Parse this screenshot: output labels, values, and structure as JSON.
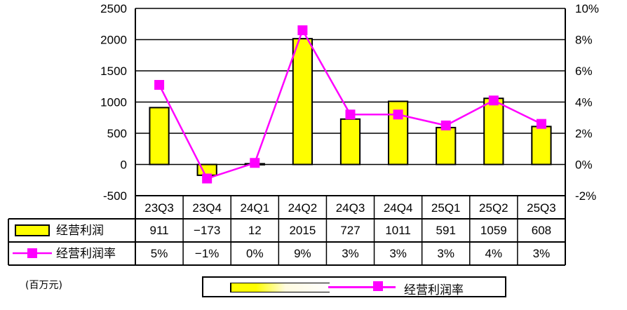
{
  "chart_data": {
    "type": "bar",
    "categories": [
      "23Q3",
      "23Q4",
      "24Q1",
      "24Q2",
      "24Q3",
      "24Q4",
      "25Q1",
      "25Q2",
      "25Q3"
    ],
    "series": [
      {
        "name": "经营利润",
        "type": "bar",
        "axis": "left",
        "color": "#ffff00",
        "values": [
          911,
          -173,
          12,
          2015,
          727,
          1011,
          591,
          1059,
          608
        ]
      },
      {
        "name": "经营利润率",
        "type": "line",
        "axis": "right",
        "color": "#ff00ff",
        "values": [
          5.1,
          -0.9,
          0.1,
          8.6,
          3.2,
          3.2,
          2.5,
          4.1,
          2.6
        ]
      }
    ],
    "table_rows": [
      {
        "label": "经营利润",
        "values": [
          "911",
          "−173",
          "12",
          "2015",
          "727",
          "1011",
          "591",
          "1059",
          "608"
        ]
      },
      {
        "label": "经营利润率",
        "values": [
          "5%",
          "−1%",
          "0%",
          "9%",
          "3%",
          "3%",
          "3%",
          "4%",
          "3%"
        ]
      }
    ],
    "left_axis": {
      "ylim": [
        -500,
        2500
      ],
      "ticks": [
        "2500",
        "2000",
        "1500",
        "1000",
        "500",
        "0",
        "-500"
      ]
    },
    "right_axis": {
      "ylim": [
        -2,
        10
      ],
      "ticks": [
        "10%",
        "8%",
        "6%",
        "4%",
        "2%",
        "0%",
        "-2%"
      ]
    },
    "grid": true,
    "unit_label": "(百万元)",
    "legend": {
      "label": "经营利润率",
      "position": "bottom"
    }
  }
}
